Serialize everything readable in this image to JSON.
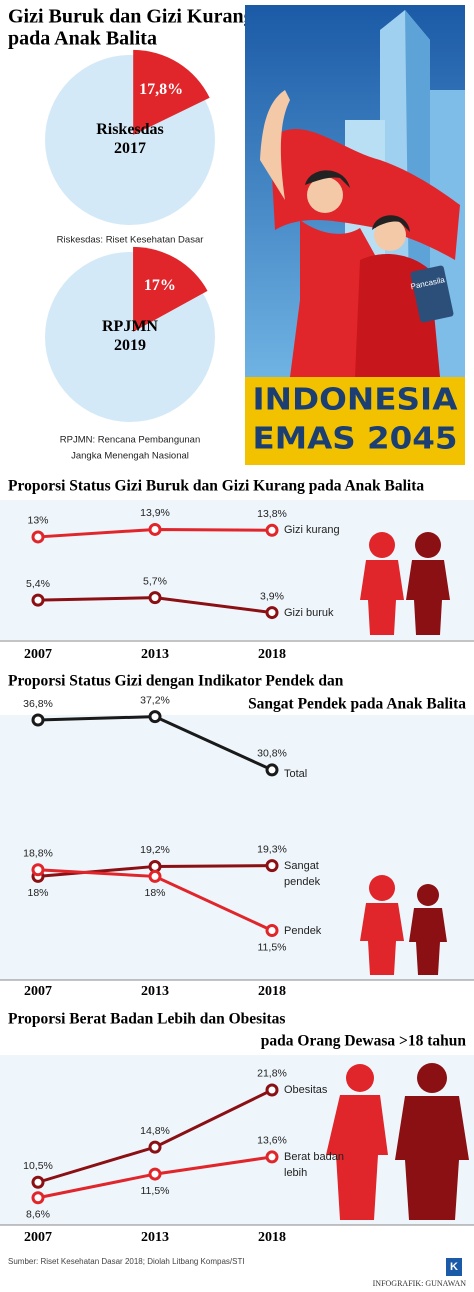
{
  "header": {
    "title": [
      "Gizi Buruk dan Gizi Kurang",
      "pada Anak Balita"
    ]
  },
  "poster": {
    "lines": [
      "INDONESIA",
      "EMAS 2045"
    ],
    "badge": "Pancasila"
  },
  "chart_data": [
    {
      "type": "pie",
      "values": [
        17.8
      ],
      "value_labels": [
        "17,8%"
      ],
      "color": "#e0262b",
      "center_label": [
        "Riskesdas",
        "2017"
      ],
      "note": [
        "Riskesdas: Riset Kesehatan Dasar"
      ]
    },
    {
      "type": "pie",
      "values": [
        17
      ],
      "value_labels": [
        "17%"
      ],
      "color": "#e0262b",
      "center_label": [
        "RPJMN",
        "2019"
      ],
      "note": [
        "RPJMN: Rencana Pembangunan",
        "Jangka Menengah Nasional"
      ]
    },
    {
      "type": "line",
      "title": [
        "Proporsi Status Gizi Buruk dan Gizi Kurang pada Anak Balita"
      ],
      "categories": [
        "2007",
        "2013",
        "2018"
      ],
      "ylim": [
        0,
        16
      ],
      "series": [
        {
          "name": "Gizi kurang",
          "color": "#e0262b",
          "values": [
            13,
            13.9,
            13.8
          ],
          "value_labels": [
            "13%",
            "13,9%",
            "13,8%"
          ]
        },
        {
          "name": "Gizi buruk",
          "color": "#8b1014",
          "values": [
            5.4,
            5.7,
            3.9
          ],
          "value_labels": [
            "5,4%",
            "5,7%",
            "3,9%"
          ]
        }
      ]
    },
    {
      "type": "line",
      "title": [
        "Proporsi Status Gizi dengan Indikator Pendek dan",
        "Sangat Pendek pada Anak Balita"
      ],
      "categories": [
        "2007",
        "2013",
        "2018"
      ],
      "ylim": [
        10,
        38
      ],
      "series": [
        {
          "name": "Total",
          "color": "#1a1a1a",
          "values": [
            36.8,
            37.2,
            30.8
          ],
          "value_labels": [
            "36,8%",
            "37,2%",
            "30,8%"
          ]
        },
        {
          "name": "Sangat pendek",
          "color": "#8b1014",
          "values": [
            18,
            19.2,
            19.3
          ],
          "value_labels": [
            "18%",
            "19,2%",
            "19,3%"
          ]
        },
        {
          "name": "Pendek",
          "color": "#e0262b",
          "values": [
            18.8,
            18,
            11.5
          ],
          "value_labels": [
            "18,8%",
            "18%",
            "11,5%"
          ]
        }
      ]
    },
    {
      "type": "line",
      "title": [
        "Proporsi Berat Badan Lebih dan Obesitas",
        "pada Orang Dewasa >18 tahun"
      ],
      "categories": [
        "2007",
        "2013",
        "2018"
      ],
      "ylim": [
        6,
        24
      ],
      "series": [
        {
          "name": "Obesitas",
          "color": "#8b1014",
          "values": [
            10.5,
            14.8,
            21.8
          ],
          "value_labels": [
            "10,5%",
            "14,8%",
            "21,8%"
          ]
        },
        {
          "name": "Berat badan lebih",
          "color": "#e0262b",
          "values": [
            8.6,
            11.5,
            13.6
          ],
          "value_labels": [
            "8,6%",
            "11,5%",
            "13,6%"
          ]
        }
      ]
    }
  ],
  "footer": {
    "source": "Sumber: Riset Kesehatan Dasar 2018; Diolah Litbang Kompas/STI",
    "credit": "INFOGRAFIK: GUNAWAN",
    "logo": "K"
  }
}
